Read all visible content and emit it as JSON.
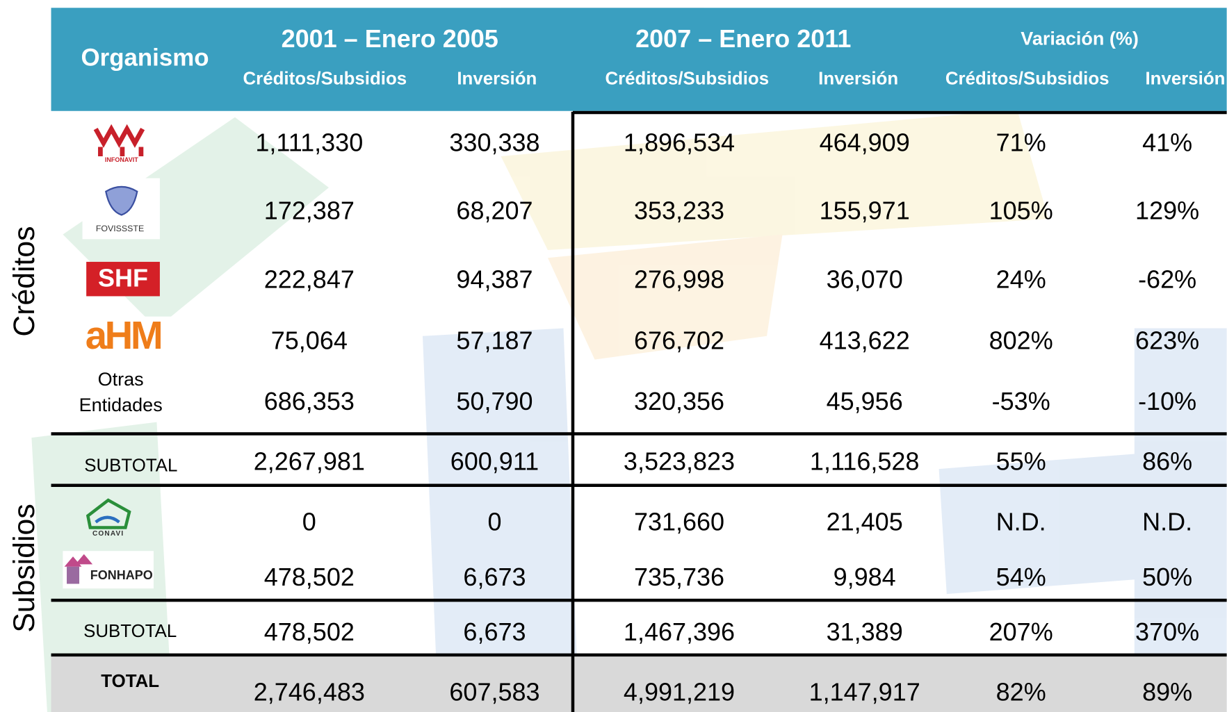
{
  "header": {
    "organismo": "Organismo",
    "period1": "2001 – Enero 2005",
    "period2": "2007 – Enero 2011",
    "variacion": "Variación (%)",
    "subheaders": [
      "Créditos/Subsidios",
      "Inversión",
      "Créditos/Subsidios",
      "Inversión",
      "Créditos/Subsidios",
      "Inversión"
    ]
  },
  "groups": {
    "creditos": "Créditos",
    "subsidios": "Subsidios"
  },
  "rows": [
    {
      "label": [
        "INFONAVIT"
      ],
      "cells": [
        "1,111,330",
        "330,338",
        "1,896,534",
        "464,909",
        "71%",
        "41%"
      ]
    },
    {
      "label": [
        "FOVISSSTE"
      ],
      "cells": [
        "172,387",
        "68,207",
        "353,233",
        "155,971",
        "105%",
        "129%"
      ]
    },
    {
      "label": [
        "SHF"
      ],
      "cells": [
        "222,847",
        "94,387",
        "276,998",
        "36,070",
        "24%",
        "-62%"
      ]
    },
    {
      "label": [
        "aHM"
      ],
      "cells": [
        "75,064",
        "57,187",
        "676,702",
        "413,622",
        "802%",
        "623%"
      ]
    },
    {
      "label": [
        "Otras",
        "Entidades"
      ],
      "cells": [
        "686,353",
        "50,790",
        "320,356",
        "45,956",
        "-53%",
        "-10%"
      ]
    },
    {
      "label": [
        "SUBTOTAL"
      ],
      "cells": [
        "2,267,981",
        "600,911",
        "3,523,823",
        "1,116,528",
        "55%",
        "86%"
      ]
    },
    {
      "label": [
        "CONAVI"
      ],
      "cells": [
        "0",
        "0",
        "731,660",
        "21,405",
        "N.D.",
        "N.D."
      ]
    },
    {
      "label": [
        "FONHAPO"
      ],
      "cells": [
        "478,502",
        "6,673",
        "735,736",
        "9,984",
        "54%",
        "50%"
      ]
    },
    {
      "label": [
        "SUBTOTAL"
      ],
      "cells": [
        "478,502",
        "6,673",
        "1,467,396",
        "31,389",
        "207%",
        "370%"
      ]
    },
    {
      "label": [
        "TOTAL"
      ],
      "cells": [
        "2,746,483",
        "607,583",
        "4,991,219",
        "1,147,917",
        "82%",
        "89%"
      ]
    }
  ]
}
